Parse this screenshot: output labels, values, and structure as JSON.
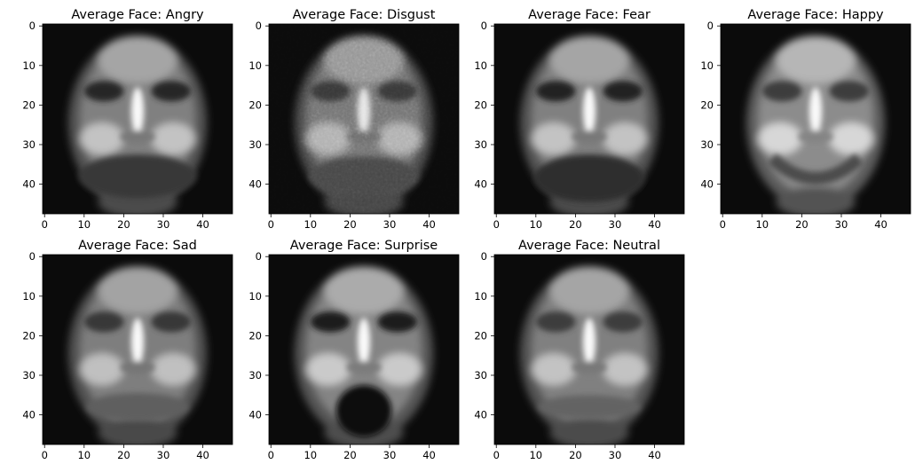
{
  "figure": {
    "shared_axes": {
      "xticks": [
        0,
        10,
        20,
        30,
        40
      ],
      "yticks": [
        0,
        10,
        20,
        30,
        40
      ],
      "xlim": [
        -0.5,
        47.5
      ],
      "ylim": [
        47.5,
        -0.5
      ]
    }
  },
  "chart_data": [
    {
      "type": "heatmap",
      "title": "Average Face: Angry",
      "image_size": [
        48,
        48
      ],
      "colormap": "gray",
      "x_ticks": [
        0,
        10,
        20,
        30,
        40
      ],
      "y_ticks": [
        0,
        10,
        20,
        30,
        40
      ],
      "xlim": [
        -0.5,
        47.5
      ],
      "ylim": [
        47.5,
        -0.5
      ]
    },
    {
      "type": "heatmap",
      "title": "Average Face: Disgust",
      "image_size": [
        48,
        48
      ],
      "colormap": "gray",
      "x_ticks": [
        0,
        10,
        20,
        30,
        40
      ],
      "y_ticks": [
        0,
        10,
        20,
        30,
        40
      ],
      "xlim": [
        -0.5,
        47.5
      ],
      "ylim": [
        47.5,
        -0.5
      ]
    },
    {
      "type": "heatmap",
      "title": "Average Face: Fear",
      "image_size": [
        48,
        48
      ],
      "colormap": "gray",
      "x_ticks": [
        0,
        10,
        20,
        30,
        40
      ],
      "y_ticks": [
        0,
        10,
        20,
        30,
        40
      ],
      "xlim": [
        -0.5,
        47.5
      ],
      "ylim": [
        47.5,
        -0.5
      ]
    },
    {
      "type": "heatmap",
      "title": "Average Face: Happy",
      "image_size": [
        48,
        48
      ],
      "colormap": "gray",
      "x_ticks": [
        0,
        10,
        20,
        30,
        40
      ],
      "y_ticks": [
        0,
        10,
        20,
        30,
        40
      ],
      "xlim": [
        -0.5,
        47.5
      ],
      "ylim": [
        47.5,
        -0.5
      ]
    },
    {
      "type": "heatmap",
      "title": "Average Face: Sad",
      "image_size": [
        48,
        48
      ],
      "colormap": "gray",
      "x_ticks": [
        0,
        10,
        20,
        30,
        40
      ],
      "y_ticks": [
        0,
        10,
        20,
        30,
        40
      ],
      "xlim": [
        -0.5,
        47.5
      ],
      "ylim": [
        47.5,
        -0.5
      ]
    },
    {
      "type": "heatmap",
      "title": "Average Face: Surprise",
      "image_size": [
        48,
        48
      ],
      "colormap": "gray",
      "x_ticks": [
        0,
        10,
        20,
        30,
        40
      ],
      "y_ticks": [
        0,
        10,
        20,
        30,
        40
      ],
      "xlim": [
        -0.5,
        47.5
      ],
      "ylim": [
        47.5,
        -0.5
      ]
    },
    {
      "type": "heatmap",
      "title": "Average Face: Neutral",
      "image_size": [
        48,
        48
      ],
      "colormap": "gray",
      "x_ticks": [
        0,
        10,
        20,
        30,
        40
      ],
      "y_ticks": [
        0,
        10,
        20,
        30,
        40
      ],
      "xlim": [
        -0.5,
        47.5
      ],
      "ylim": [
        47.5,
        -0.5
      ]
    }
  ]
}
